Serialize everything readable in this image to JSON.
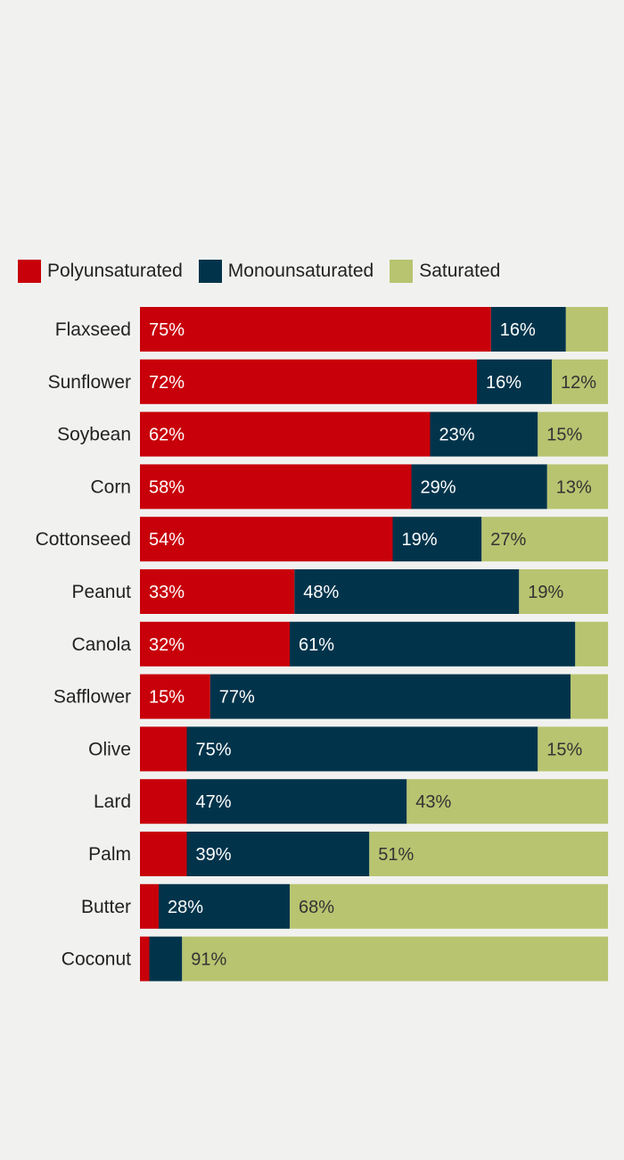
{
  "chart_data": {
    "type": "bar",
    "orientation": "horizontal",
    "stacked": true,
    "title": "",
    "xlabel": "",
    "ylabel": "",
    "xlim": [
      0,
      100
    ],
    "grid": false,
    "legend_position": "top-left",
    "categories": [
      "Flaxseed",
      "Sunflower",
      "Soybean",
      "Corn",
      "Cottonseed",
      "Peanut",
      "Canola",
      "Safflower",
      "Olive",
      "Lard",
      "Palm",
      "Butter",
      "Coconut"
    ],
    "series": [
      {
        "name": "Polyunsaturated",
        "color": "#c8000a",
        "label_color": "#ffffff",
        "values": [
          75,
          72,
          62,
          58,
          54,
          33,
          32,
          15,
          10,
          10,
          10,
          4,
          2
        ],
        "labels": [
          "75%",
          "72%",
          "62%",
          "58%",
          "54%",
          "33%",
          "32%",
          "15%",
          "",
          "",
          "",
          "",
          ""
        ]
      },
      {
        "name": "Monounsaturated",
        "color": "#01344b",
        "label_color": "#ffffff",
        "values": [
          16,
          16,
          23,
          29,
          19,
          48,
          61,
          77,
          75,
          47,
          39,
          28,
          7
        ],
        "labels": [
          "16%",
          "16%",
          "23%",
          "29%",
          "19%",
          "48%",
          "61%",
          "77%",
          "75%",
          "47%",
          "39%",
          "28%",
          ""
        ]
      },
      {
        "name": "Saturated",
        "color": "#b8c470",
        "label_color": "#333333",
        "values": [
          9,
          12,
          15,
          13,
          27,
          19,
          7,
          8,
          15,
          43,
          51,
          68,
          91
        ],
        "labels": [
          "",
          "12%",
          "15%",
          "13%",
          "27%",
          "19%",
          "",
          "",
          "15%",
          "43%",
          "51%",
          "68%",
          "91%"
        ]
      }
    ]
  }
}
